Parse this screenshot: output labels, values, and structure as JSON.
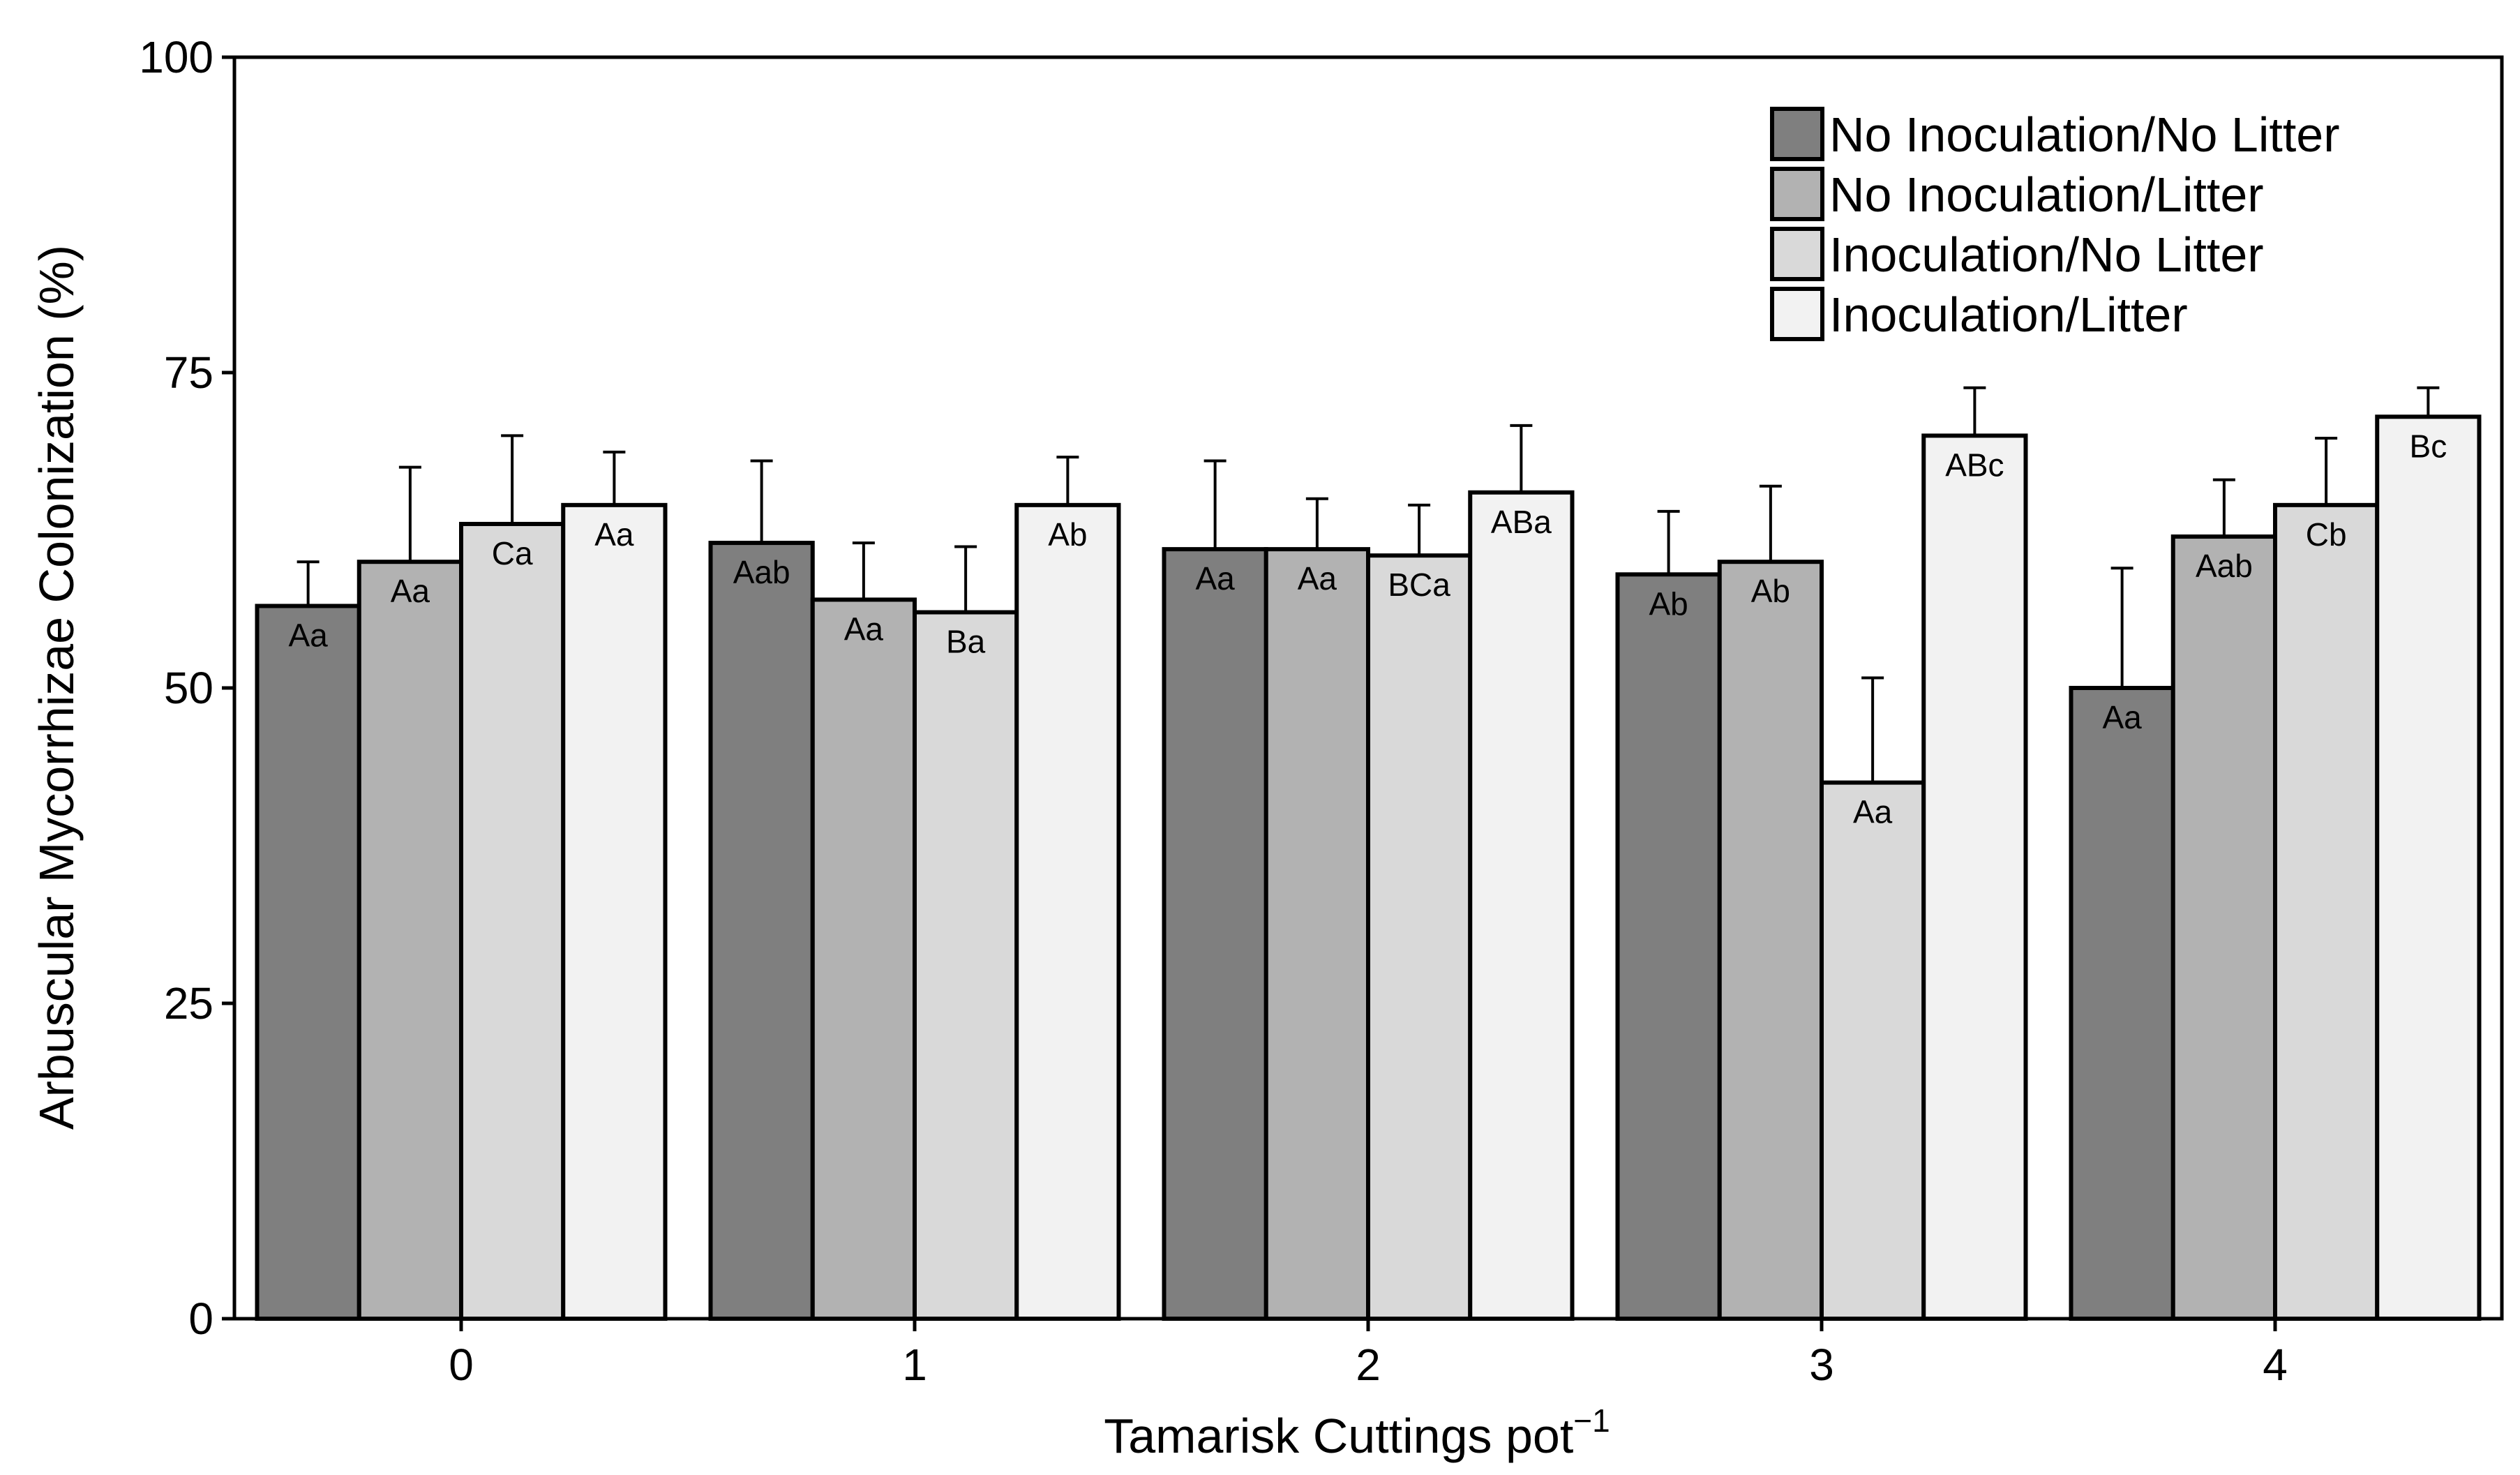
{
  "chart_data": {
    "type": "bar",
    "title": "",
    "xlabel": "Tamarisk Cuttings pot",
    "xlabel_superscript": "−1",
    "ylabel": "Arbuscular Mycorrhizae Colonization (%)",
    "ylim": [
      0,
      100
    ],
    "yticks": [
      0,
      25,
      50,
      75,
      100
    ],
    "categories": [
      "0",
      "1",
      "2",
      "3",
      "4"
    ],
    "legend_position": "top-right",
    "grid": false,
    "series": [
      {
        "name": "No Inoculation/No Litter",
        "color": "#7f7f7f",
        "values": [
          56.5,
          61.5,
          61,
          59,
          50
        ],
        "errors": [
          3.5,
          6.5,
          7,
          5,
          9.5
        ],
        "labels": [
          "Aa",
          "Aab",
          "Aa",
          "Ab",
          "Aa"
        ]
      },
      {
        "name": "No Inoculation/Litter",
        "color": "#b2b2b2",
        "values": [
          60,
          57,
          61,
          60,
          62
        ],
        "errors": [
          7.5,
          4.5,
          4,
          6,
          4.5
        ],
        "labels": [
          "Aa",
          "Aa",
          "Aa",
          "Ab",
          "Aab"
        ]
      },
      {
        "name": "Inoculation/No Litter",
        "color": "#d9d9d9",
        "values": [
          63,
          56,
          60.5,
          42.5,
          64.5
        ],
        "errors": [
          7,
          5.2,
          4,
          8.3,
          5.3
        ],
        "labels": [
          "Ca",
          "Ba",
          "BCa",
          "Aa",
          "Cb"
        ]
      },
      {
        "name": "Inoculation/Litter",
        "color": "#f2f2f2",
        "values": [
          64.5,
          64.5,
          65.5,
          70,
          71.5
        ],
        "errors": [
          4.2,
          3.8,
          5.3,
          3.8,
          2.3
        ],
        "labels": [
          "Aa",
          "Ab",
          "ABa",
          "ABc",
          "Bc"
        ]
      }
    ]
  }
}
